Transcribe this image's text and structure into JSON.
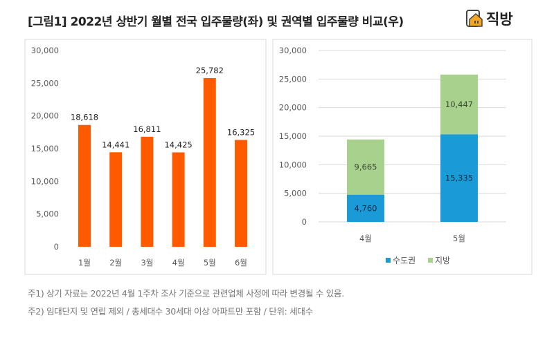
{
  "title": "[그림1] 2022년 상반기 월별 전국 입주물량(좌) 및 권역별 입주물량 비교(우)",
  "logo": {
    "text": "직방",
    "icon": "house-icon",
    "color": "#f5a623"
  },
  "notes": [
    "주1) 상기 자료는 2022년 4월 1주차 조사 기준으로 관련업체 사정에 따라 변경될 수 있음.",
    "주2) 임대단지 및 연립 제외 / 총세대수 30세대 이상 아파트만 포함 / 단위: 세대수"
  ],
  "chart_data": [
    {
      "type": "bar",
      "categories": [
        "1월",
        "2월",
        "3월",
        "4월",
        "5월",
        "6월"
      ],
      "values": [
        18618,
        14441,
        16811,
        14425,
        25782,
        16325
      ],
      "data_labels": [
        "18,618",
        "14,441",
        "16,811",
        "14,425",
        "25,782",
        "16,325"
      ],
      "ylim": [
        0,
        30000
      ],
      "yticks": [
        "0",
        "5,000",
        "10,000",
        "15,000",
        "20,000",
        "25,000",
        "30,000"
      ],
      "grid": false,
      "color": "#ff5a00"
    },
    {
      "type": "stacked-bar",
      "categories": [
        "4월",
        "5월"
      ],
      "series": [
        {
          "name": "수도권",
          "values": [
            4760,
            15335
          ],
          "labels": [
            "4,760",
            "15,335"
          ],
          "color": "#1a9ad6"
        },
        {
          "name": "지방",
          "values": [
            9665,
            10447
          ],
          "labels": [
            "9,665",
            "10,447"
          ],
          "color": "#a9d18e"
        }
      ],
      "ylim": [
        0,
        30000
      ],
      "yticks": [
        "0",
        "5,000",
        "10,000",
        "15,000",
        "20,000",
        "25,000",
        "30,000"
      ],
      "grid": true,
      "legend": "bottom"
    }
  ]
}
